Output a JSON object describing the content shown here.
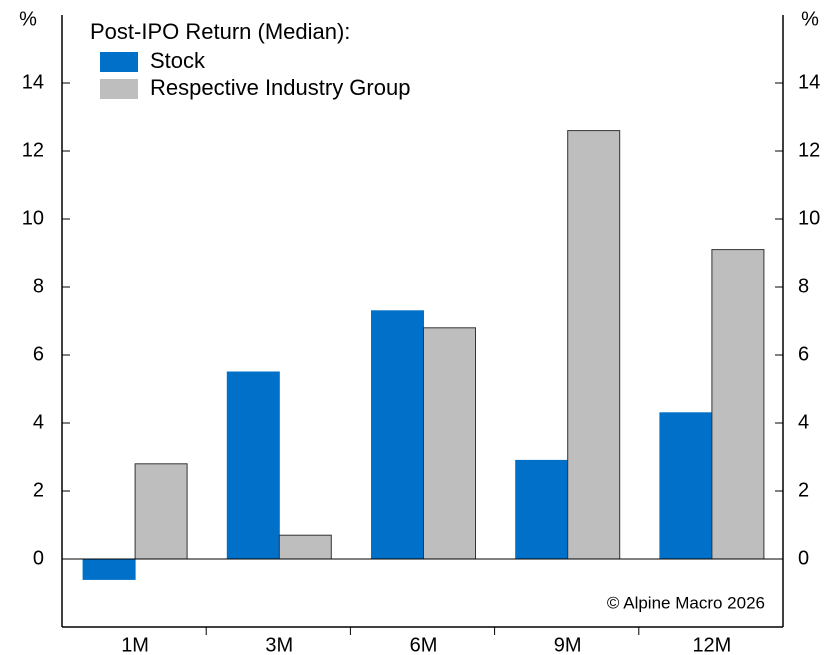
{
  "chart_data": {
    "type": "bar",
    "legend_title": "Post-IPO Return (Median):",
    "y_unit": "%",
    "y2_unit": "%",
    "annotation": "© Alpine Macro 2026",
    "categories": [
      "1M",
      "3M",
      "6M",
      "9M",
      "12M"
    ],
    "series": [
      {
        "name": "Stock",
        "color": "#0070c8",
        "values": [
          -0.6,
          5.5,
          7.3,
          2.9,
          4.3
        ]
      },
      {
        "name": "Respective Industry Group",
        "color": "#bebebe",
        "values": [
          2.8,
          0.7,
          6.8,
          12.6,
          9.1
        ]
      }
    ],
    "ylim": [
      -2,
      16
    ],
    "yticks": [
      0,
      2,
      4,
      6,
      8,
      10,
      12,
      14
    ],
    "y2lim": [
      -2,
      16
    ],
    "y2ticks": [
      0,
      2,
      4,
      6,
      8,
      10,
      12,
      14
    ],
    "legend": "upper left"
  }
}
